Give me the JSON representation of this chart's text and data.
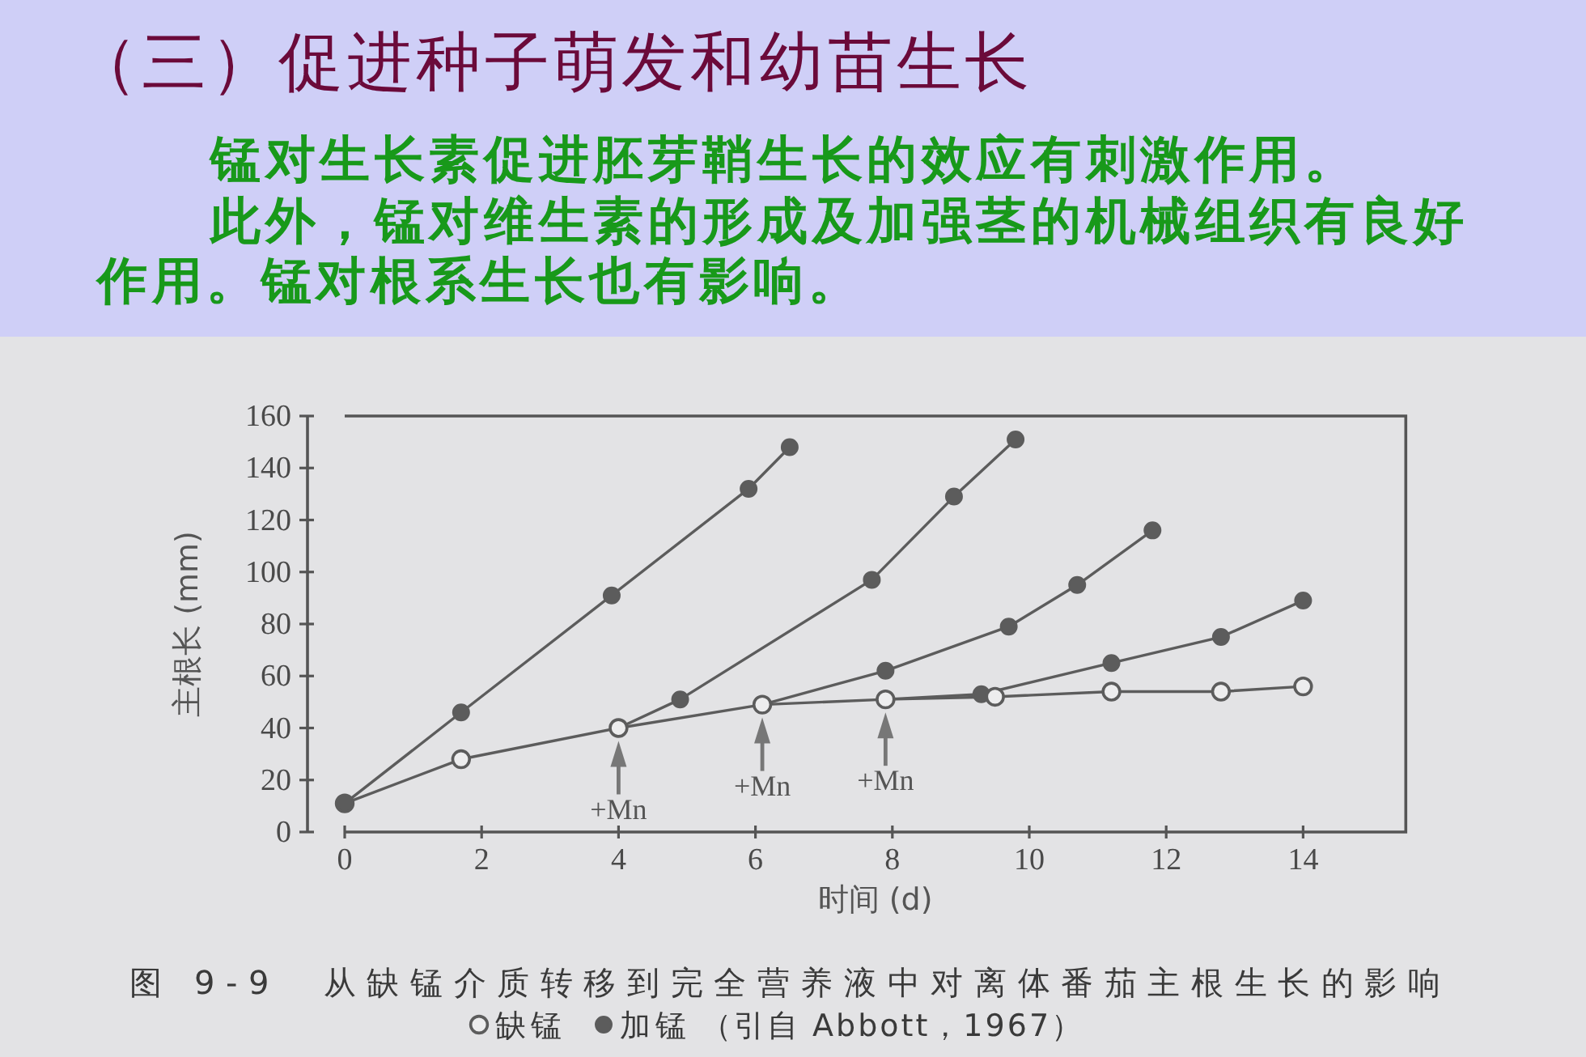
{
  "chart_data": {
    "type": "line",
    "title": "（三）促进种子萌发和幼苗生长",
    "xlabel": "时间 (d)",
    "ylabel": "主根长 (mm)",
    "xlim": [
      0,
      15.5
    ],
    "ylim": [
      0,
      160
    ],
    "xticks": [
      0,
      2,
      4,
      6,
      8,
      10,
      12,
      14
    ],
    "yticks": [
      0,
      20,
      40,
      60,
      80,
      100,
      120,
      140,
      160
    ],
    "marker": "circle",
    "line_style": "solid",
    "legend": "bottom",
    "series": [
      {
        "name": "缺锰",
        "color": "#5c5c5c",
        "x": [
          0,
          1.7,
          4,
          6.1,
          7.9,
          9.5,
          11.2,
          12.8,
          14
        ],
        "values": [
          11,
          28,
          40,
          49,
          51,
          52,
          54,
          54,
          56
        ]
      },
      {
        "name": "加锰",
        "color": "#5c5c5c",
        "x": [
          0,
          1.7,
          3.9,
          5.9,
          6.5
        ],
        "values": [
          11,
          46,
          91,
          132,
          148
        ]
      },
      {
        "color": "#5c5c5c",
        "x": [
          4,
          4.9,
          7.7,
          8.9,
          9.8
        ],
        "values": [
          40,
          51,
          97,
          129,
          151
        ]
      },
      {
        "color": "#5c5c5c",
        "x": [
          6.1,
          7.9,
          9.7,
          10.7,
          11.8
        ],
        "values": [
          49,
          62,
          79,
          95,
          116
        ]
      },
      {
        "color": "#5c5c5c",
        "x": [
          7.9,
          9.3,
          11.2,
          12.8,
          14
        ],
        "values": [
          51,
          53,
          65,
          75,
          89
        ]
      }
    ],
    "annotations": [
      "锰对生长素促进胚芽鞘生长的效应有刺激作用。",
      "此外，锰对维生素的形成及加强茎的机械组织有良好作用。锰对根系生长也有影响。",
      {
        "text": "+Mn",
        "x": 4,
        "y": 40
      },
      {
        "text": "+Mn",
        "x": 6.1,
        "y": 49
      },
      {
        "text": "+Mn",
        "x": 7.9,
        "y": 51
      },
      "图 9-9　从缺锰介质转移到完全营养液中对离体番茄主根生长的影响",
      "（引自 Abbott，1967）"
    ]
  }
}
